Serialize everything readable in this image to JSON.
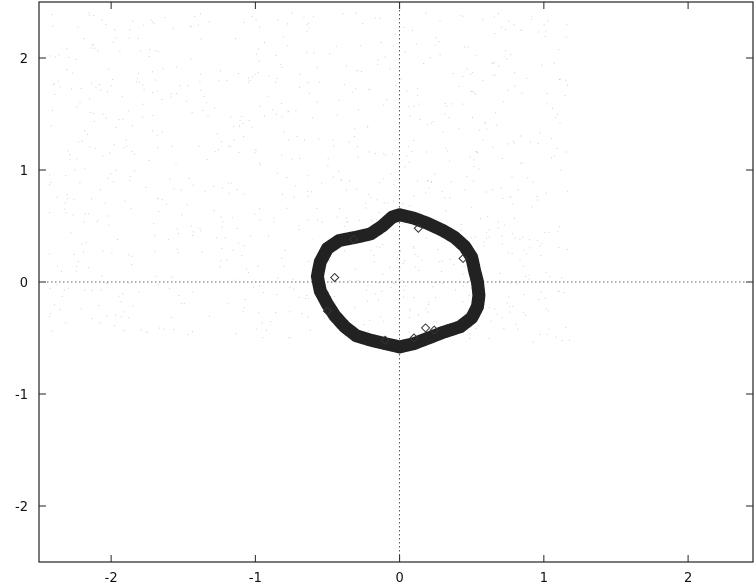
{
  "chart_data": {
    "type": "scatter",
    "title": "",
    "xlabel": "",
    "ylabel": "",
    "xlim": [
      -2.5,
      2.45
    ],
    "ylim": [
      -2.5,
      2.5
    ],
    "x_ticks": [
      -2,
      -1,
      0,
      1,
      2
    ],
    "y_ticks": [
      -2,
      -1,
      0,
      1,
      2
    ],
    "x_tick_labels": [
      "-2",
      "-1",
      "0",
      "1",
      "2"
    ],
    "y_tick_labels": [
      "-2",
      "-1",
      "0",
      "1",
      "2"
    ],
    "grid": false,
    "zero_lines": true,
    "series": [
      {
        "marker": "filled-circle",
        "color": "#222222",
        "x": [
          0.0,
          0.1,
          0.2,
          0.3,
          0.38,
          0.45,
          0.5,
          0.52,
          0.54,
          0.55,
          0.54,
          0.5,
          0.42,
          0.3,
          0.2,
          0.1,
          0.0,
          -0.1,
          -0.2,
          -0.3,
          -0.38,
          -0.45,
          -0.5,
          -0.55,
          -0.57,
          -0.55,
          -0.5,
          -0.42,
          -0.3,
          -0.2,
          -0.12,
          -0.05
        ],
        "y": [
          0.6,
          0.57,
          0.52,
          0.46,
          0.4,
          0.32,
          0.22,
          0.1,
          0.0,
          -0.12,
          -0.22,
          -0.32,
          -0.4,
          -0.45,
          -0.5,
          -0.55,
          -0.58,
          -0.55,
          -0.52,
          -0.48,
          -0.4,
          -0.3,
          -0.2,
          -0.08,
          0.05,
          0.18,
          0.3,
          0.37,
          0.4,
          0.43,
          0.5,
          0.58
        ]
      },
      {
        "marker": "diamond",
        "color": "#333333",
        "x": [
          0.13,
          0.44,
          -0.45,
          -0.5,
          -0.32,
          0.18,
          0.24,
          0.1,
          -0.1
        ],
        "y": [
          0.48,
          0.21,
          0.04,
          -0.26,
          0.38,
          -0.41,
          -0.43,
          -0.5,
          -0.52
        ]
      }
    ]
  }
}
